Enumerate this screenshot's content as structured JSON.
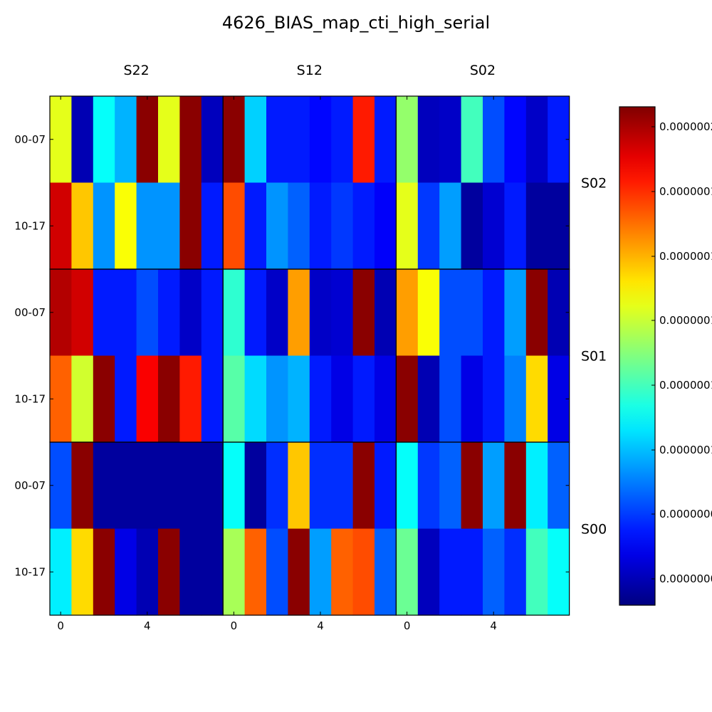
{
  "chart_data": {
    "type": "heatmap",
    "title": "4626_BIAS_map_cti_high_serial",
    "columns": [
      "S22",
      "S12",
      "S02"
    ],
    "rows": [
      "S02",
      "S01",
      "S00"
    ],
    "row_tick_labels": [
      "00-07",
      "10-17"
    ],
    "x_tick_labels": [
      "0",
      "4"
    ],
    "colormap": "jet",
    "colorbar_tick_labels": [
      "0.0000002",
      "0.0000001",
      "0.0000001",
      "0.0000001",
      "0.0000001",
      "0.0000001",
      "0.0000000",
      "0.0000000"
    ],
    "values": [
      [
        [
          0.6,
          0.05,
          0.38,
          0.3,
          0.99,
          0.6,
          0.99,
          0.06,
          0.99,
          0.33,
          0.15,
          0.15,
          0.13,
          0.15,
          0.85,
          0.15,
          0.52,
          0.06,
          0.07,
          0.44,
          0.2,
          0.13,
          0.07,
          0.15
        ],
        [
          0.92,
          0.68,
          0.27,
          0.62,
          0.27,
          0.27,
          0.99,
          0.15,
          0.8,
          0.15,
          0.27,
          0.22,
          0.15,
          0.18,
          0.15,
          0.12,
          0.6,
          0.18,
          0.28,
          0.03,
          0.08,
          0.15,
          0.03,
          0.03
        ]
      ],
      [
        [
          0.95,
          0.92,
          0.15,
          0.15,
          0.2,
          0.15,
          0.07,
          0.15,
          0.42,
          0.15,
          0.07,
          0.72,
          0.07,
          0.08,
          0.99,
          0.05,
          0.72,
          0.62,
          0.2,
          0.2,
          0.15,
          0.28,
          0.99,
          0.05
        ],
        [
          0.78,
          0.58,
          0.99,
          0.15,
          0.88,
          0.99,
          0.85,
          0.15,
          0.46,
          0.34,
          0.27,
          0.3,
          0.15,
          0.1,
          0.15,
          0.1,
          0.99,
          0.05,
          0.2,
          0.1,
          0.15,
          0.25,
          0.66,
          0.1
        ]
      ],
      [
        [
          0.2,
          0.99,
          0.03,
          0.03,
          0.03,
          0.03,
          0.03,
          0.03,
          0.38,
          0.03,
          0.17,
          0.68,
          0.17,
          0.17,
          0.99,
          0.15,
          0.38,
          0.18,
          0.22,
          0.99,
          0.28,
          0.99,
          0.36,
          0.22
        ],
        [
          0.36,
          0.66,
          0.99,
          0.1,
          0.05,
          0.99,
          0.03,
          0.03,
          0.54,
          0.78,
          0.2,
          0.99,
          0.28,
          0.78,
          0.8,
          0.22,
          0.48,
          0.06,
          0.15,
          0.15,
          0.22,
          0.17,
          0.44,
          0.38
        ]
      ]
    ]
  }
}
